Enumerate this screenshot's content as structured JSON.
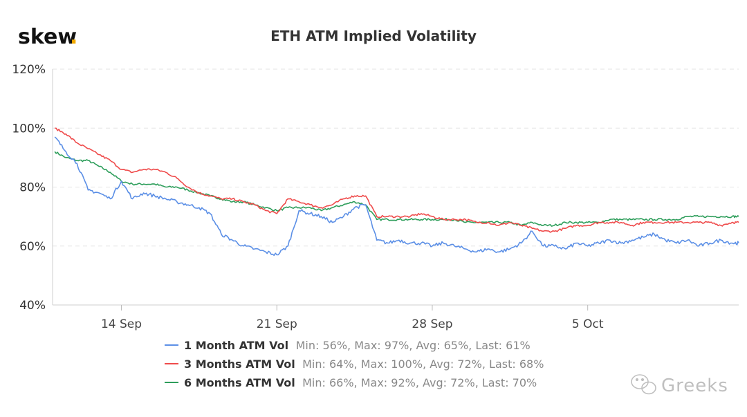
{
  "logo": {
    "text": "skew",
    "dot": "."
  },
  "watermark": {
    "text": "Greeks",
    "icon": "wechat-icon"
  },
  "colors": {
    "one_month": "#5b8fe6",
    "three_months": "#ef4b4b",
    "six_months": "#2e9e5b",
    "logo_dot": "#f2a900"
  },
  "chart_data": {
    "type": "line",
    "title": "ETH ATM Implied Volatility",
    "xlabel": "",
    "ylabel": "",
    "x_ticks": [
      "14 Sep",
      "21 Sep",
      "28 Sep",
      "5 Oct"
    ],
    "x_tick_days": [
      14,
      21,
      28,
      35
    ],
    "xlim_days": [
      10.9,
      41.8
    ],
    "y_ticks": [
      "40%",
      "60%",
      "80%",
      "100%",
      "120%"
    ],
    "y_tick_values": [
      40,
      60,
      80,
      100,
      120
    ],
    "ylim": [
      40,
      120
    ],
    "grid": true,
    "legend_position": "bottom",
    "x": [
      11,
      11.5,
      12,
      12.5,
      13,
      13.5,
      14,
      14.5,
      15,
      15.5,
      16,
      16.5,
      17,
      17.5,
      18,
      18.5,
      19,
      19.5,
      20,
      20.5,
      21,
      21.5,
      22,
      22.5,
      23,
      23.5,
      24,
      24.5,
      25,
      25.5,
      26,
      26.5,
      27,
      27.5,
      28,
      28.5,
      29,
      29.5,
      30,
      30.5,
      31,
      31.5,
      32,
      32.5,
      33,
      33.5,
      34,
      34.5,
      35,
      35.5,
      36,
      36.5,
      37,
      37.5,
      38,
      38.5,
      39,
      39.5,
      40,
      40.5,
      41,
      41.5,
      41.8
    ],
    "series": [
      {
        "name": "1 Month ATM Vol",
        "legend_stats": "Min: 56%, Max: 97%, Avg: 65%, Last: 61%",
        "color": "#5b8fe6",
        "values": [
          97,
          92,
          88,
          79,
          78,
          76,
          82,
          76,
          78,
          77,
          76,
          75,
          74,
          73,
          71,
          64,
          62,
          60,
          59,
          58,
          57,
          60,
          72,
          71,
          70,
          68,
          70,
          73,
          74,
          62,
          61,
          62,
          61,
          61,
          60,
          61,
          60,
          59,
          58,
          59,
          58,
          59,
          61,
          65,
          60,
          60,
          59,
          61,
          60,
          61,
          62,
          61,
          62,
          63,
          64,
          62,
          61,
          62,
          60,
          61,
          62,
          61,
          61
        ]
      },
      {
        "name": "3 Months ATM Vol",
        "legend_stats": "Min: 64%, Max: 100%, Avg: 72%, Last: 68%",
        "color": "#ef4b4b",
        "values": [
          100,
          98,
          95,
          93,
          91,
          89,
          86,
          85,
          86,
          86,
          85,
          83,
          80,
          78,
          77,
          76,
          76,
          75,
          74,
          72,
          71,
          76,
          75,
          74,
          73,
          74,
          76,
          77,
          77,
          70,
          70,
          70,
          70,
          71,
          70,
          69,
          69,
          69,
          68,
          68,
          67,
          68,
          67,
          66,
          65,
          65,
          66,
          67,
          67,
          68,
          68,
          68,
          67,
          68,
          68,
          68,
          68,
          68,
          68,
          68,
          67,
          68,
          68
        ]
      },
      {
        "name": "6 Months ATM Vol",
        "legend_stats": "Min: 66%, Max: 92%, Avg: 72%, Last: 70%",
        "color": "#2e9e5b",
        "values": [
          92,
          90,
          89,
          89,
          87,
          85,
          82,
          81,
          81,
          81,
          80,
          80,
          79,
          78,
          77,
          76,
          75,
          75,
          74,
          73,
          72,
          73,
          73,
          73,
          72,
          73,
          74,
          75,
          74,
          69,
          69,
          69,
          69,
          69,
          69,
          69,
          69,
          68,
          68,
          68,
          68,
          68,
          67,
          68,
          67,
          67,
          68,
          68,
          68,
          68,
          69,
          69,
          69,
          69,
          69,
          69,
          69,
          70,
          70,
          70,
          70,
          70,
          70
        ]
      }
    ]
  }
}
